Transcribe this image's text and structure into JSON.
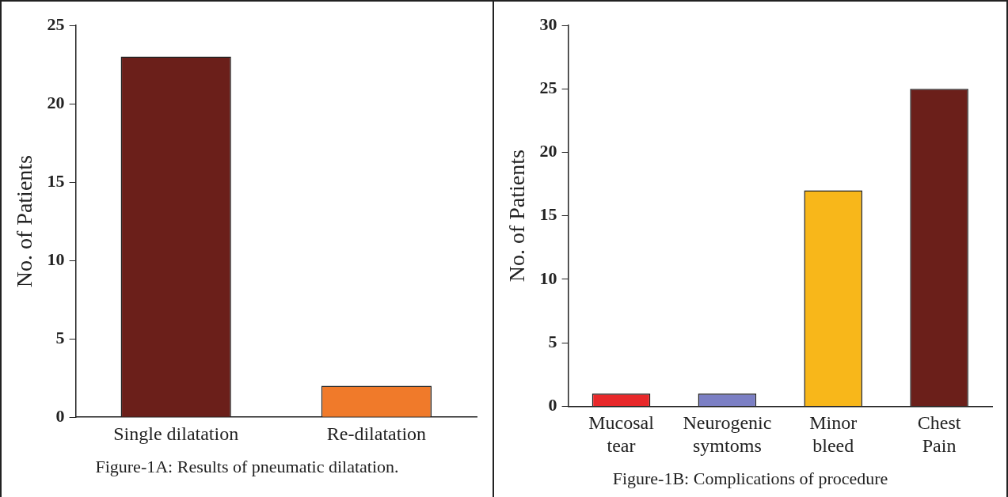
{
  "chart_data": [
    {
      "type": "bar",
      "ylabel": "No. of Patients",
      "categories": [
        "Single dilatation",
        "Re-dilatation"
      ],
      "values": [
        23,
        2
      ],
      "colors": [
        "#6b1f1a",
        "#f07a2a"
      ],
      "ylim": [
        0,
        25
      ],
      "yticks": [
        0,
        5,
        10,
        15,
        20,
        25
      ],
      "annotations": [
        "Figure-1A: Results of pneumatic dilatation."
      ]
    },
    {
      "type": "bar",
      "ylabel": "No. of Patients",
      "categories": [
        "Mucosal\ntear",
        "Neurogenic\nsymtoms",
        "Minor\nbleed",
        "Chest\nPain"
      ],
      "values": [
        1,
        1,
        17,
        25
      ],
      "colors": [
        "#e8282a",
        "#7b7fc4",
        "#f8b71a",
        "#6b1f1a"
      ],
      "ylim": [
        0,
        30
      ],
      "yticks": [
        0,
        5,
        10,
        15,
        20,
        25,
        30
      ],
      "annotations": [
        "Figure-1B: Complications of procedure"
      ]
    }
  ]
}
